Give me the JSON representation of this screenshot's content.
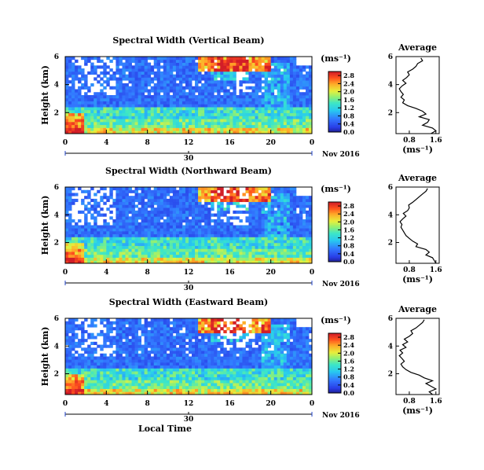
{
  "chart_data": [
    {
      "type": "heatmap",
      "title": "Spectral Width (Vertical Beam)",
      "ylabel": "Height (km)",
      "xlabel": "",
      "x_ticks": [
        "0",
        "4",
        "8",
        "12",
        "16",
        "20",
        "0"
      ],
      "y_ticks": [
        "2",
        "4",
        "6"
      ],
      "xlim_hours": [
        0,
        24
      ],
      "ylim_km": [
        0.5,
        6.0
      ],
      "date_day": "30",
      "date_month": "Nov 2016",
      "colorbar": {
        "unit": "(ms⁻¹)",
        "ticks": [
          "0.0",
          "0.4",
          "0.8",
          "1.2",
          "1.6",
          "2.0",
          "2.4",
          "2.8"
        ],
        "range": [
          0.0,
          3.0
        ]
      },
      "profile": {
        "title": "Average",
        "xlabel": "(ms⁻¹)",
        "x_ticks": [
          "0.8",
          "1.6"
        ],
        "y_ticks": [
          "2",
          "4",
          "6"
        ],
        "xlim": [
          0.4,
          1.7
        ],
        "ylim": [
          0.5,
          6.0
        ],
        "points": [
          [
            1.45,
            0.5
          ],
          [
            1.6,
            0.7
          ],
          [
            1.5,
            0.9
          ],
          [
            1.2,
            1.1
          ],
          [
            1.35,
            1.3
          ],
          [
            1.4,
            1.5
          ],
          [
            1.1,
            1.7
          ],
          [
            1.3,
            1.9
          ],
          [
            1.2,
            2.1
          ],
          [
            1.0,
            2.3
          ],
          [
            0.75,
            2.5
          ],
          [
            0.6,
            2.7
          ],
          [
            0.65,
            2.9
          ],
          [
            0.55,
            3.1
          ],
          [
            0.62,
            3.3
          ],
          [
            0.55,
            3.5
          ],
          [
            0.5,
            3.7
          ],
          [
            0.58,
            3.9
          ],
          [
            0.7,
            4.1
          ],
          [
            0.6,
            4.3
          ],
          [
            0.72,
            4.5
          ],
          [
            0.8,
            4.7
          ],
          [
            0.75,
            4.9
          ],
          [
            0.9,
            5.1
          ],
          [
            1.0,
            5.3
          ],
          [
            1.05,
            5.5
          ],
          [
            1.2,
            5.7
          ],
          [
            1.15,
            5.9
          ]
        ]
      }
    },
    {
      "type": "heatmap",
      "title": "Spectral Width (Northward Beam)",
      "ylabel": "Height (km)",
      "xlabel": "",
      "x_ticks": [
        "0",
        "4",
        "8",
        "12",
        "16",
        "20",
        "0"
      ],
      "y_ticks": [
        "2",
        "4",
        "6"
      ],
      "xlim_hours": [
        0,
        24
      ],
      "ylim_km": [
        0.5,
        6.0
      ],
      "date_day": "30",
      "date_month": "Nov 2016",
      "colorbar": {
        "unit": "(ms⁻¹)",
        "ticks": [
          "0.0",
          "0.4",
          "0.8",
          "1.2",
          "1.6",
          "2.0",
          "2.4",
          "2.8"
        ],
        "range": [
          0.0,
          3.0
        ]
      },
      "profile": {
        "title": "Average",
        "xlabel": "(ms⁻¹)",
        "x_ticks": [
          "0.8",
          "1.6"
        ],
        "y_ticks": [
          "2",
          "4",
          "6"
        ],
        "xlim": [
          0.4,
          1.7
        ],
        "ylim": [
          0.5,
          6.0
        ],
        "points": [
          [
            1.6,
            0.5
          ],
          [
            1.55,
            0.7
          ],
          [
            1.5,
            0.9
          ],
          [
            1.3,
            1.1
          ],
          [
            1.4,
            1.3
          ],
          [
            1.3,
            1.5
          ],
          [
            1.0,
            1.7
          ],
          [
            1.05,
            1.9
          ],
          [
            0.9,
            2.1
          ],
          [
            0.8,
            2.3
          ],
          [
            0.7,
            2.5
          ],
          [
            0.65,
            2.7
          ],
          [
            0.6,
            2.9
          ],
          [
            0.55,
            3.1
          ],
          [
            0.58,
            3.3
          ],
          [
            0.52,
            3.5
          ],
          [
            0.6,
            3.7
          ],
          [
            0.7,
            3.9
          ],
          [
            0.62,
            4.1
          ],
          [
            0.75,
            4.3
          ],
          [
            0.8,
            4.5
          ],
          [
            0.78,
            4.7
          ],
          [
            0.9,
            4.9
          ],
          [
            1.0,
            5.1
          ],
          [
            1.1,
            5.3
          ],
          [
            1.2,
            5.5
          ],
          [
            1.3,
            5.7
          ],
          [
            1.35,
            5.9
          ]
        ]
      }
    },
    {
      "type": "heatmap",
      "title": "Spectral Width (Eastward Beam)",
      "ylabel": "Height (km)",
      "xlabel": "Local Time",
      "x_ticks": [
        "0",
        "4",
        "8",
        "12",
        "16",
        "20",
        "0"
      ],
      "y_ticks": [
        "2",
        "4",
        "6"
      ],
      "xlim_hours": [
        0,
        24
      ],
      "ylim_km": [
        0.5,
        6.0
      ],
      "date_day": "30",
      "date_month": "Nov 2016",
      "colorbar": {
        "unit": "(ms⁻¹)",
        "ticks": [
          "0.0",
          "0.4",
          "0.8",
          "1.2",
          "1.6",
          "2.0",
          "2.4",
          "2.8"
        ],
        "range": [
          0.0,
          3.0
        ]
      },
      "profile": {
        "title": "Average",
        "xlabel": "(ms⁻¹)",
        "x_ticks": [
          "0.8",
          "1.6"
        ],
        "y_ticks": [
          "2",
          "4",
          "6"
        ],
        "xlim": [
          0.4,
          1.7
        ],
        "ylim": [
          0.5,
          6.0
        ],
        "points": [
          [
            1.5,
            0.5
          ],
          [
            1.4,
            0.7
          ],
          [
            1.6,
            0.9
          ],
          [
            1.45,
            1.1
          ],
          [
            1.3,
            1.3
          ],
          [
            1.5,
            1.5
          ],
          [
            1.25,
            1.7
          ],
          [
            1.1,
            1.9
          ],
          [
            0.85,
            2.1
          ],
          [
            0.7,
            2.3
          ],
          [
            0.6,
            2.5
          ],
          [
            0.55,
            2.7
          ],
          [
            0.65,
            2.9
          ],
          [
            0.58,
            3.1
          ],
          [
            0.5,
            3.3
          ],
          [
            0.6,
            3.5
          ],
          [
            0.52,
            3.7
          ],
          [
            0.7,
            3.9
          ],
          [
            0.6,
            4.1
          ],
          [
            0.75,
            4.3
          ],
          [
            0.65,
            4.5
          ],
          [
            0.8,
            4.7
          ],
          [
            0.9,
            4.9
          ],
          [
            0.85,
            5.1
          ],
          [
            1.0,
            5.3
          ],
          [
            1.1,
            5.5
          ],
          [
            1.2,
            5.7
          ],
          [
            1.25,
            5.9
          ]
        ]
      }
    }
  ]
}
